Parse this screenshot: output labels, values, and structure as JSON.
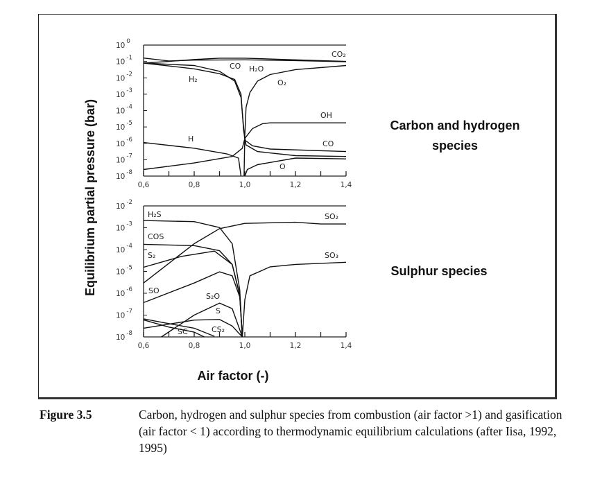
{
  "annotations": {
    "carbon_line1": "Carbon and hydrogen",
    "carbon_line2": "species",
    "sulphur": "Sulphur species"
  },
  "caption": {
    "label": "Figure 3.5",
    "text": "Carbon, hydrogen and sulphur species from combustion (air factor >1) and gasification (air factor < 1) according to thermodynamic equilibrium calculations (after Iisa, 1992, 1995)"
  },
  "chart_data": [
    {
      "type": "line",
      "title": "Carbon and hydrogen species",
      "xlabel": "Air factor (-)",
      "ylabel": "Equilibrium partial pressure (bar)",
      "yscale": "log",
      "xlim": [
        0.6,
        1.4
      ],
      "ylim_log10": [
        -8,
        0
      ],
      "x_ticks": [
        "0,6",
        "0,8",
        "1,0",
        "1,2",
        "1,4"
      ],
      "y_tick_exponents": [
        "0",
        "-1",
        "-2",
        "-3",
        "-4",
        "-5",
        "-6",
        "-7",
        "-8"
      ],
      "series": [
        {
          "name": "CO₂",
          "points_log10": [
            [
              0.6,
              -1.1
            ],
            [
              0.7,
              -1.0
            ],
            [
              0.8,
              -0.88
            ],
            [
              0.9,
              -0.8
            ],
            [
              1.0,
              -0.8
            ],
            [
              1.2,
              -0.9
            ],
            [
              1.4,
              -1.0
            ]
          ]
        },
        {
          "name": "H₂O",
          "points_log10": [
            [
              0.6,
              -0.79
            ],
            [
              0.7,
              -0.97
            ],
            [
              0.8,
              -0.92
            ],
            [
              1.0,
              -0.9
            ],
            [
              1.2,
              -0.95
            ],
            [
              1.4,
              -1.02
            ]
          ]
        },
        {
          "name": "CO",
          "points_log10": [
            [
              0.6,
              -1.1
            ],
            [
              0.8,
              -1.25
            ],
            [
              0.9,
              -1.6
            ],
            [
              0.96,
              -2.2
            ],
            [
              0.985,
              -3.2
            ],
            [
              0.995,
              -5.0
            ],
            [
              1.0,
              -5.8
            ],
            [
              1.03,
              -6.15
            ],
            [
              1.1,
              -6.35
            ],
            [
              1.4,
              -6.5
            ]
          ]
        },
        {
          "name": "H₂",
          "points_log10": [
            [
              0.6,
              -1.1
            ],
            [
              0.8,
              -1.45
            ],
            [
              0.9,
              -1.75
            ],
            [
              0.96,
              -2.1
            ],
            [
              0.985,
              -3.0
            ],
            [
              0.995,
              -5.2
            ],
            [
              1.005,
              -6.1
            ],
            [
              1.05,
              -6.5
            ],
            [
              1.2,
              -6.75
            ],
            [
              1.4,
              -6.8
            ]
          ]
        },
        {
          "name": "O₂",
          "points_log10": [
            [
              0.997,
              -8
            ],
            [
              1.0,
              -5.5
            ],
            [
              1.005,
              -3.8
            ],
            [
              1.02,
              -2.9
            ],
            [
              1.05,
              -2.2
            ],
            [
              1.1,
              -1.8
            ],
            [
              1.2,
              -1.5
            ],
            [
              1.4,
              -1.25
            ]
          ]
        },
        {
          "name": "OH",
          "points_log10": [
            [
              0.6,
              -7.6
            ],
            [
              0.8,
              -7.2
            ],
            [
              0.95,
              -6.8
            ],
            [
              0.99,
              -6.3
            ],
            [
              1.0,
              -5.7
            ],
            [
              1.03,
              -5.1
            ],
            [
              1.07,
              -4.8
            ],
            [
              1.1,
              -4.75
            ],
            [
              1.4,
              -4.75
            ]
          ]
        },
        {
          "name": "H",
          "points_log10": [
            [
              0.6,
              -5.95
            ],
            [
              0.8,
              -6.3
            ],
            [
              0.93,
              -6.65
            ],
            [
              0.975,
              -6.9
            ],
            [
              0.985,
              -8
            ]
          ]
        },
        {
          "name": "O",
          "points_log10": [
            [
              1.0,
              -8
            ],
            [
              1.01,
              -7.6
            ],
            [
              1.05,
              -7.3
            ],
            [
              1.2,
              -6.9
            ],
            [
              1.4,
              -6.95
            ]
          ]
        }
      ]
    },
    {
      "type": "line",
      "title": "Sulphur species",
      "xlabel": "Air factor (-)",
      "ylabel": "Equilibrium partial pressure (bar)",
      "yscale": "log",
      "xlim": [
        0.6,
        1.4
      ],
      "ylim_log10": [
        -8,
        -2
      ],
      "x_ticks": [
        "0,6",
        "0,8",
        "1,0",
        "1,2",
        "1,4"
      ],
      "y_tick_exponents": [
        "-2",
        "-3",
        "-4",
        "-5",
        "-6",
        "-7",
        "-8"
      ],
      "series": [
        {
          "name": "H₂S",
          "points_log10": [
            [
              0.6,
              -2.67
            ],
            [
              0.8,
              -2.72
            ],
            [
              0.9,
              -2.99
            ],
            [
              0.95,
              -3.73
            ],
            [
              0.98,
              -5.85
            ],
            [
              0.99,
              -8
            ]
          ]
        },
        {
          "name": "SO₂",
          "points_log10": [
            [
              0.6,
              -5.53
            ],
            [
              0.8,
              -3.73
            ],
            [
              0.9,
              -3.04
            ],
            [
              1.0,
              -2.8
            ],
            [
              1.2,
              -2.75
            ],
            [
              1.3,
              -2.83
            ],
            [
              1.4,
              -2.83
            ]
          ]
        },
        {
          "name": "COS",
          "points_log10": [
            [
              0.6,
              -3.76
            ],
            [
              0.8,
              -3.82
            ],
            [
              0.9,
              -4.05
            ],
            [
              0.95,
              -4.68
            ],
            [
              0.98,
              -6.06
            ],
            [
              0.99,
              -8
            ]
          ]
        },
        {
          "name": "S₂",
          "points_log10": [
            [
              0.6,
              -4.81
            ],
            [
              0.75,
              -4.31
            ],
            [
              0.88,
              -4.07
            ],
            [
              0.95,
              -4.68
            ],
            [
              0.98,
              -6.1
            ],
            [
              0.99,
              -8
            ]
          ]
        },
        {
          "name": "SO",
          "points_log10": [
            [
              0.6,
              -6.43
            ],
            [
              0.8,
              -5.53
            ],
            [
              0.9,
              -5.02
            ],
            [
              0.95,
              -5.2
            ],
            [
              0.98,
              -6.17
            ],
            [
              0.99,
              -8
            ]
          ]
        },
        {
          "name": "SO₃",
          "points_log10": [
            [
              0.99,
              -8
            ],
            [
              1.0,
              -6.3
            ],
            [
              1.02,
              -5.2
            ],
            [
              1.1,
              -4.79
            ],
            [
              1.2,
              -4.68
            ],
            [
              1.4,
              -4.58
            ]
          ]
        },
        {
          "name": "S₂O",
          "points_log10": [
            [
              0.67,
              -8
            ],
            [
              0.8,
              -7.0
            ],
            [
              0.9,
              -6.45
            ],
            [
              0.95,
              -6.7
            ],
            [
              0.99,
              -8
            ]
          ]
        },
        {
          "name": "S",
          "points_log10": [
            [
              0.6,
              -7.6
            ],
            [
              0.8,
              -7.23
            ],
            [
              0.9,
              -7.2
            ],
            [
              0.95,
              -7.5
            ],
            [
              0.99,
              -8
            ]
          ]
        },
        {
          "name": "CS₂",
          "points_log10": [
            [
              0.6,
              -7.17
            ],
            [
              0.7,
              -7.39
            ],
            [
              0.8,
              -7.6
            ],
            [
              0.88,
              -7.97
            ]
          ]
        },
        {
          "name": "SC",
          "points_log10": [
            [
              0.6,
              -7.22
            ],
            [
              0.7,
              -7.55
            ],
            [
              0.8,
              -7.78
            ],
            [
              0.84,
              -8
            ]
          ]
        }
      ]
    }
  ]
}
